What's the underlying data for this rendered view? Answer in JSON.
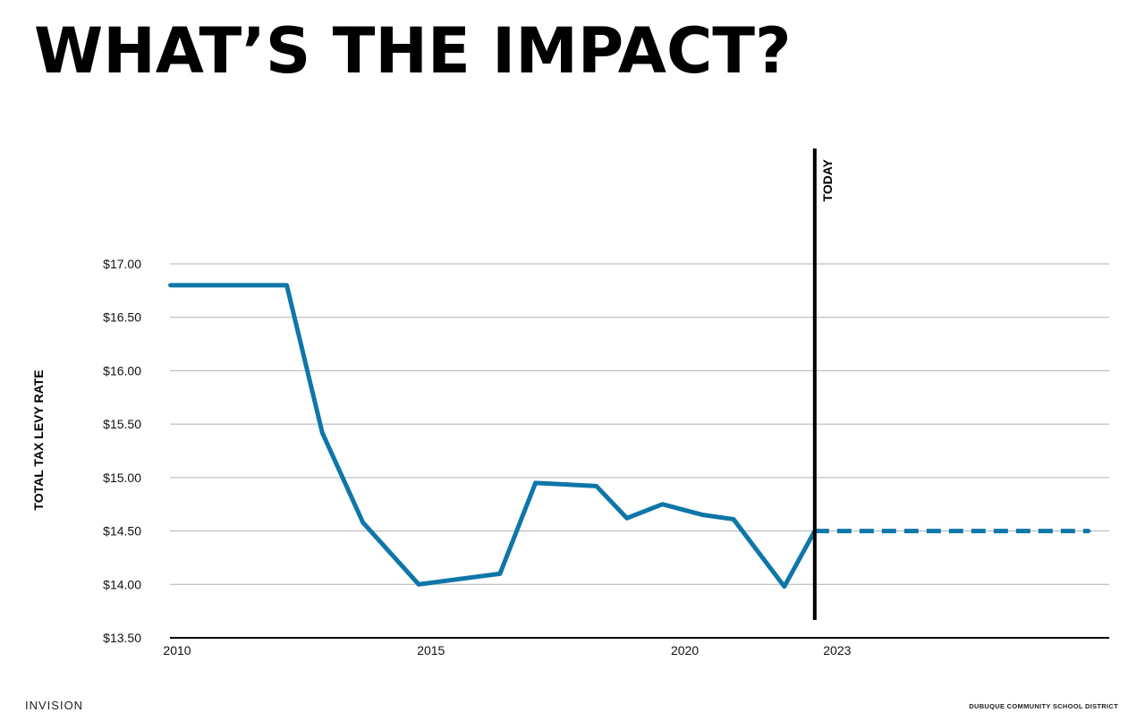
{
  "title": "WHAT’S THE IMPACT?",
  "footer": {
    "left": "INVISION",
    "right": "DUBUQUE COMMUNITY SCHOOL DISTRICT"
  },
  "colors": {
    "line": "#0e76a8",
    "marker": "#000000",
    "grid": "#b0b0b0",
    "axis": "#000000"
  },
  "chart_data": {
    "type": "line",
    "title": "",
    "xlabel": "",
    "ylabel": "TOTAL TAX LEVY RATE",
    "ylim": [
      13.5,
      17.0
    ],
    "xlim": [
      2010,
      2028.5
    ],
    "grid": true,
    "y_ticks": [
      {
        "value": 17.0,
        "label": "$17.00"
      },
      {
        "value": 16.5,
        "label": "$16.50"
      },
      {
        "value": 16.0,
        "label": "$16.00"
      },
      {
        "value": 15.5,
        "label": "$15.50"
      },
      {
        "value": 15.0,
        "label": "$15.00"
      },
      {
        "value": 14.5,
        "label": "$14.50"
      },
      {
        "value": 14.0,
        "label": "$14.00"
      },
      {
        "value": 13.5,
        "label": "$13.50"
      }
    ],
    "x_ticks": [
      {
        "value": 2010,
        "label": "2010"
      },
      {
        "value": 2015,
        "label": "2015"
      },
      {
        "value": 2020,
        "label": "2020"
      },
      {
        "value": 2023,
        "label": "2023"
      }
    ],
    "series": [
      {
        "style": "solid",
        "x": [
          2010,
          2012.3,
          2013.0,
          2013.8,
          2014.9,
          2016.5,
          2017.2,
          2018.4,
          2019.0,
          2019.7,
          2020.5,
          2021.1,
          2022.1,
          2022.7
        ],
        "y": [
          16.8,
          16.8,
          15.42,
          14.58,
          14.0,
          14.1,
          14.95,
          14.92,
          14.62,
          14.75,
          14.65,
          14.61,
          13.98,
          14.5
        ]
      },
      {
        "style": "dashed",
        "x": [
          2022.7,
          2028.1
        ],
        "y": [
          14.5,
          14.5
        ]
      }
    ],
    "annotations": [
      {
        "type": "vline",
        "x": 2022.7,
        "label": "TODAY"
      }
    ]
  }
}
